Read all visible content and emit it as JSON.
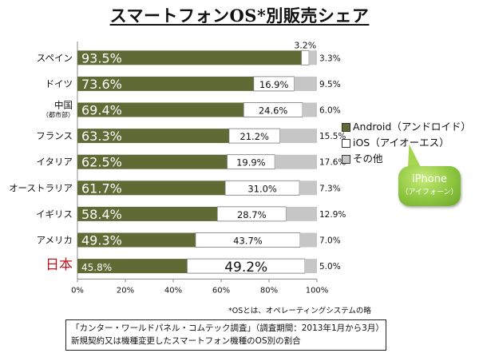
{
  "title": "スマートフォンOS*別販売シェア",
  "chart_data": {
    "type": "bar",
    "orientation": "horizontal",
    "stacked": true,
    "categories": [
      "スペイン",
      "ドイツ",
      "中国",
      "フランス",
      "イタリア",
      "オーストラリア",
      "イギリス",
      "アメリカ",
      "日本"
    ],
    "category_sublabels": {
      "中国": "（都市部）"
    },
    "series": [
      {
        "name": "Android（アンドロイド）",
        "values": [
          93.5,
          73.6,
          69.4,
          63.3,
          62.5,
          61.7,
          58.4,
          49.3,
          45.8
        ]
      },
      {
        "name": "iOS（アイオーエス）",
        "values": [
          3.2,
          16.9,
          24.6,
          21.2,
          19.9,
          31.0,
          28.7,
          43.7,
          49.2
        ]
      },
      {
        "name": "その他",
        "values": [
          3.3,
          9.5,
          6.0,
          15.5,
          17.6,
          7.3,
          12.9,
          7.0,
          5.0
        ]
      }
    ],
    "android_labels": [
      "93.5%",
      "73.6%",
      "69.4%",
      "63.3%",
      "62.5%",
      "61.7%",
      "58.4%",
      "49.3%",
      "45.8%"
    ],
    "ios_labels": [
      "3.2%",
      "16.9%",
      "24.6%",
      "21.2%",
      "19.9%",
      "31.0%",
      "28.7%",
      "43.7%",
      "49.2%"
    ],
    "other_labels": [
      "3.3%",
      "9.5%",
      "6.0%",
      "15.5%",
      "17.6%",
      "7.3%",
      "12.9%",
      "7.0%",
      "5.0%"
    ],
    "xlim": [
      0,
      100
    ],
    "xticks": [
      "0%",
      "20%",
      "40%",
      "60%",
      "80%",
      "100%"
    ],
    "xlabel": "",
    "ylabel": "",
    "legend_position": "right",
    "highlight_category": "日本"
  },
  "colors": {
    "android": "#5f6a35",
    "ios": "#ffffff",
    "other": "#c6c6c6",
    "highlight_label": "#c0131b",
    "axis": "#888888"
  },
  "legend": [
    {
      "label": "Android（アンドロイド）",
      "color": "#5f6a35"
    },
    {
      "label": "iOS（アイオーエス）",
      "color": "#ffffff"
    },
    {
      "label": "その他",
      "color": "#c6c6c6"
    }
  ],
  "callout": {
    "line1": "iPhone",
    "line2": "（アイフォーン）"
  },
  "footnote": "*OSとは、オペレーティングシステムの略",
  "source": {
    "line1": "「カンター・ワールドパネル・コムテック調査」（調査期間：2013年1月から3月）",
    "line2": "新規契約又は機種変更したスマートフォン機種のOS別の割合"
  }
}
